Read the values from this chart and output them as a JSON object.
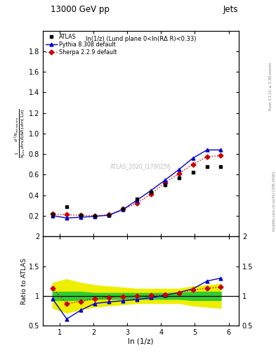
{
  "title_top": "13000 GeV pp",
  "title_right": "Jets",
  "plot_title": "ln(1/z) (Lund plane 0<ln(RΔ R)<0.33)",
  "xlabel": "ln (1/z)",
  "watermark": "ATLAS_2020_I1790256",
  "right_label_top": "Rivet 3.1.10, ≥ 3.3M events",
  "right_label_bot": "mcplots.cern.ch [arXiv:1306.3436]",
  "atlas_x": [
    0.79,
    1.21,
    1.62,
    2.04,
    2.45,
    2.87,
    3.28,
    3.7,
    4.11,
    4.53,
    4.94,
    5.36,
    5.77
  ],
  "atlas_y": [
    0.212,
    0.29,
    0.205,
    0.2,
    0.205,
    0.27,
    0.36,
    0.43,
    0.5,
    0.57,
    0.62,
    0.68,
    0.68
  ],
  "pythia_x": [
    0.79,
    1.21,
    1.62,
    2.04,
    2.45,
    2.87,
    3.28,
    3.7,
    4.11,
    4.53,
    4.94,
    5.36,
    5.77
  ],
  "pythia_y": [
    0.202,
    0.178,
    0.185,
    0.195,
    0.205,
    0.26,
    0.35,
    0.445,
    0.545,
    0.65,
    0.76,
    0.84,
    0.84
  ],
  "sherpa_x": [
    0.79,
    1.21,
    1.62,
    2.04,
    2.45,
    2.87,
    3.28,
    3.7,
    4.11,
    4.53,
    4.94,
    5.36,
    5.77
  ],
  "sherpa_y": [
    0.218,
    0.21,
    0.205,
    0.2,
    0.21,
    0.265,
    0.32,
    0.41,
    0.52,
    0.61,
    0.7,
    0.775,
    0.785
  ],
  "ratio_pythia_y": [
    0.95,
    0.615,
    0.76,
    0.875,
    0.9,
    0.92,
    0.94,
    0.97,
    1.01,
    1.06,
    1.12,
    1.25,
    1.3
  ],
  "ratio_sherpa_y": [
    1.13,
    0.87,
    0.91,
    0.95,
    0.98,
    0.99,
    0.995,
    1.01,
    1.02,
    1.05,
    1.1,
    1.13,
    1.15
  ],
  "band_yellow_low": [
    0.8,
    0.72,
    0.78,
    0.82,
    0.84,
    0.86,
    0.88,
    0.88,
    0.88,
    0.88,
    0.84,
    0.82,
    0.8
  ],
  "band_yellow_high": [
    1.22,
    1.28,
    1.22,
    1.18,
    1.16,
    1.14,
    1.12,
    1.12,
    1.12,
    1.12,
    1.16,
    1.18,
    1.2
  ],
  "band_green_low": [
    0.93,
    0.93,
    0.93,
    0.95,
    0.95,
    0.95,
    0.95,
    0.95,
    0.95,
    0.95,
    0.93,
    0.93,
    0.93
  ],
  "band_green_high": [
    1.07,
    1.07,
    1.07,
    1.05,
    1.05,
    1.05,
    1.05,
    1.05,
    1.05,
    1.05,
    1.07,
    1.07,
    1.07
  ],
  "xlim": [
    0.5,
    6.3
  ],
  "ylim_main": [
    0.0,
    2.0
  ],
  "ylim_ratio": [
    0.5,
    2.0
  ],
  "yticks_main": [
    0.2,
    0.4,
    0.6,
    0.8,
    1.0,
    1.2,
    1.4,
    1.6,
    1.8
  ],
  "yticks_ratio": [
    0.5,
    1.0,
    1.5,
    2.0
  ],
  "xticks": [
    1,
    2,
    3,
    4,
    5,
    6
  ],
  "color_atlas": "#000000",
  "color_pythia": "#0000cc",
  "color_sherpa": "#cc0000",
  "color_green": "#33cc33",
  "color_yellow": "#eeee00",
  "color_wm": "#bbbbbb"
}
